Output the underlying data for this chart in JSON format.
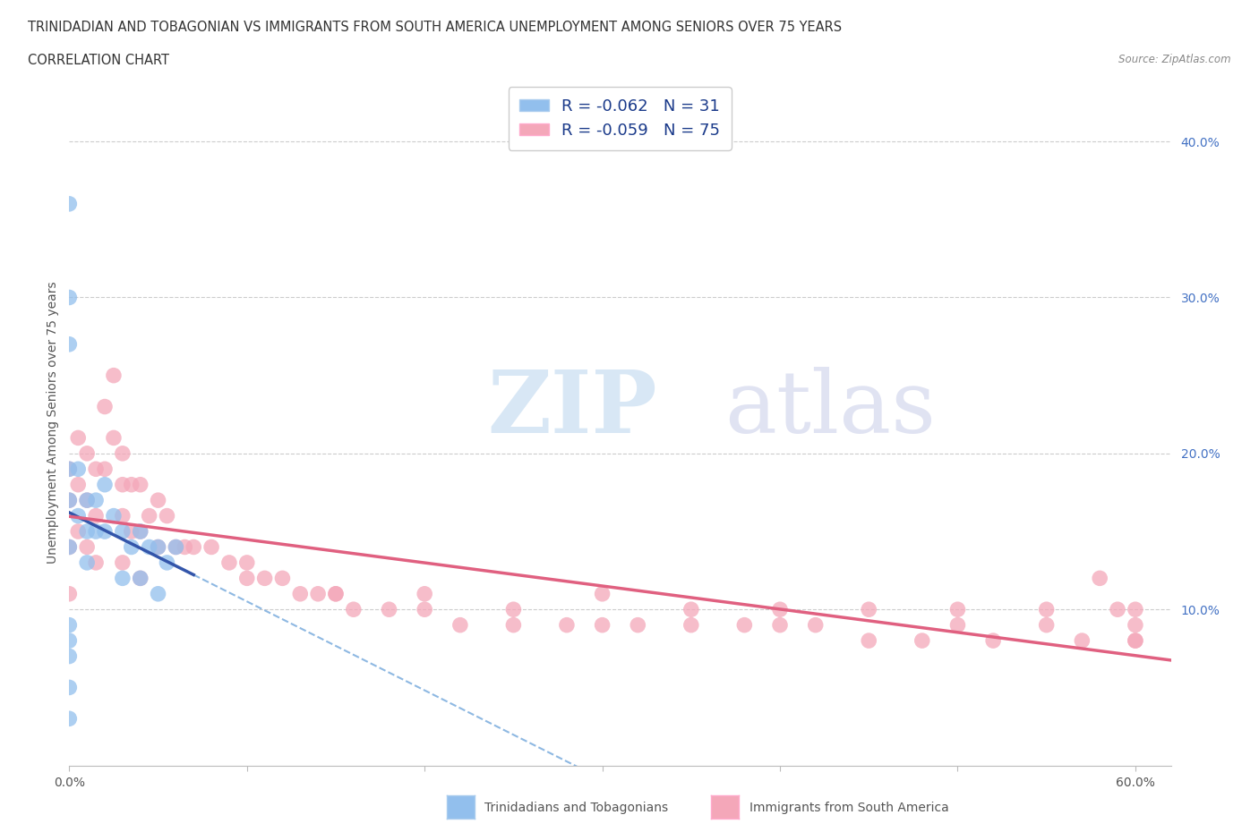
{
  "title_line1": "TRINIDADIAN AND TOBAGONIAN VS IMMIGRANTS FROM SOUTH AMERICA UNEMPLOYMENT AMONG SENIORS OVER 75 YEARS",
  "title_line2": "CORRELATION CHART",
  "source": "Source: ZipAtlas.com",
  "ylabel": "Unemployment Among Seniors over 75 years",
  "yticks": [
    "10.0%",
    "20.0%",
    "30.0%",
    "40.0%"
  ],
  "ytick_vals": [
    0.1,
    0.2,
    0.3,
    0.4
  ],
  "blue_color": "#92BFED",
  "pink_color": "#F4A7B9",
  "trend_blue_color": "#3355AA",
  "trend_pink_color": "#E06080",
  "watermark_zip": "ZIP",
  "watermark_atlas": "atlas",
  "blue_scatter_x": [
    0.0,
    0.0,
    0.0,
    0.0,
    0.0,
    0.0,
    0.005,
    0.005,
    0.01,
    0.01,
    0.01,
    0.015,
    0.015,
    0.02,
    0.02,
    0.025,
    0.03,
    0.03,
    0.035,
    0.04,
    0.04,
    0.045,
    0.05,
    0.05,
    0.055,
    0.06,
    0.0,
    0.0,
    0.0,
    0.0,
    0.0
  ],
  "blue_scatter_y": [
    0.36,
    0.3,
    0.27,
    0.19,
    0.17,
    0.14,
    0.19,
    0.16,
    0.17,
    0.15,
    0.13,
    0.17,
    0.15,
    0.18,
    0.15,
    0.16,
    0.15,
    0.12,
    0.14,
    0.15,
    0.12,
    0.14,
    0.14,
    0.11,
    0.13,
    0.14,
    0.09,
    0.08,
    0.07,
    0.05,
    0.03
  ],
  "pink_scatter_x": [
    0.0,
    0.0,
    0.0,
    0.0,
    0.005,
    0.005,
    0.005,
    0.01,
    0.01,
    0.01,
    0.015,
    0.015,
    0.015,
    0.02,
    0.02,
    0.025,
    0.025,
    0.03,
    0.03,
    0.03,
    0.03,
    0.035,
    0.035,
    0.04,
    0.04,
    0.04,
    0.045,
    0.05,
    0.05,
    0.055,
    0.06,
    0.065,
    0.07,
    0.08,
    0.09,
    0.1,
    0.11,
    0.12,
    0.13,
    0.14,
    0.15,
    0.16,
    0.18,
    0.2,
    0.22,
    0.25,
    0.28,
    0.3,
    0.32,
    0.35,
    0.38,
    0.4,
    0.42,
    0.45,
    0.48,
    0.5,
    0.52,
    0.55,
    0.57,
    0.58,
    0.59,
    0.6,
    0.6,
    0.6,
    0.6,
    0.55,
    0.5,
    0.45,
    0.4,
    0.35,
    0.3,
    0.25,
    0.2,
    0.15,
    0.1
  ],
  "pink_scatter_y": [
    0.19,
    0.17,
    0.14,
    0.11,
    0.21,
    0.18,
    0.15,
    0.2,
    0.17,
    0.14,
    0.19,
    0.16,
    0.13,
    0.23,
    0.19,
    0.25,
    0.21,
    0.2,
    0.18,
    0.16,
    0.13,
    0.18,
    0.15,
    0.18,
    0.15,
    0.12,
    0.16,
    0.17,
    0.14,
    0.16,
    0.14,
    0.14,
    0.14,
    0.14,
    0.13,
    0.13,
    0.12,
    0.12,
    0.11,
    0.11,
    0.11,
    0.1,
    0.1,
    0.1,
    0.09,
    0.09,
    0.09,
    0.09,
    0.09,
    0.09,
    0.09,
    0.09,
    0.09,
    0.08,
    0.08,
    0.09,
    0.08,
    0.09,
    0.08,
    0.12,
    0.1,
    0.08,
    0.1,
    0.08,
    0.09,
    0.1,
    0.1,
    0.1,
    0.1,
    0.1,
    0.11,
    0.1,
    0.11,
    0.11,
    0.12
  ],
  "xlim": [
    0.0,
    0.62
  ],
  "ylim": [
    0.0,
    0.44
  ],
  "blue_trend_xrange": [
    0.0,
    0.07
  ],
  "blue_dash_xrange": [
    0.07,
    0.55
  ],
  "pink_trend_xrange": [
    0.0,
    0.62
  ]
}
